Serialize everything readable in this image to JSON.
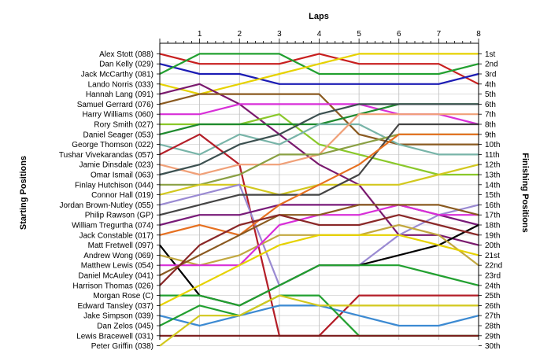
{
  "chart_data": {
    "type": "line",
    "title": "",
    "xlabel": "Laps",
    "ylabel_left": "Starting Positions",
    "ylabel_right": "Finishing Positions",
    "x": [
      0,
      1,
      2,
      3,
      4,
      5,
      6,
      7,
      8
    ],
    "x_tick_labels": [
      "1",
      "2",
      "3",
      "4",
      "5",
      "6",
      "7",
      "8"
    ],
    "y_inverted": true,
    "ylim": [
      1,
      30
    ],
    "grid": true,
    "finishing_labels": [
      "1st",
      "2nd",
      "3rd",
      "4th",
      "5th",
      "6th",
      "7th",
      "8th",
      "9th",
      "10th",
      "11th",
      "12th",
      "13th",
      "14th",
      "15th",
      "16th",
      "17th",
      "18th",
      "19th",
      "20th",
      "21st",
      "22nd",
      "23rd",
      "24th",
      "25th",
      "26th",
      "27th",
      "28th",
      "29th",
      "30th"
    ],
    "series": [
      {
        "name": "Alex Stott (088)",
        "color": "#c81e1e",
        "values": [
          1,
          2,
          2,
          2,
          1,
          2,
          2,
          2,
          4
        ]
      },
      {
        "name": "Dan Kelly (029)",
        "color": "#1c1cb4",
        "values": [
          2,
          3,
          3,
          4,
          4,
          4,
          4,
          4,
          3
        ]
      },
      {
        "name": "Jack McCarthy (081)",
        "color": "#22a030",
        "values": [
          3,
          1,
          1,
          1,
          3,
          3,
          3,
          3,
          2
        ]
      },
      {
        "name": "Lando Norris (033)",
        "color": "#e6d200",
        "values": [
          4,
          5,
          4,
          3,
          2,
          1,
          1,
          1,
          1
        ]
      },
      {
        "name": "Hannah Lang (091)",
        "color": "#7a1a6e",
        "values": [
          5,
          4,
          6,
          9,
          12,
          14,
          19,
          19,
          20
        ]
      },
      {
        "name": "Samuel Gerrard (076)",
        "color": "#8a5a20",
        "values": [
          6,
          5,
          5,
          5,
          5,
          9,
          10,
          10,
          10
        ]
      },
      {
        "name": "Harry Williams (060)",
        "color": "#d82fd8",
        "values": [
          7,
          7,
          6,
          6,
          6,
          6,
          7,
          7,
          8
        ]
      },
      {
        "name": "Rory Smith (027)",
        "color": "#8ac82a",
        "values": [
          8,
          8,
          8,
          7,
          10,
          11,
          12,
          13,
          13
        ]
      },
      {
        "name": "Daniel Seager (053)",
        "color": "#1e8a2e",
        "values": [
          9,
          8,
          8,
          8,
          8,
          7,
          6,
          6,
          6
        ]
      },
      {
        "name": "George Thomson (022)",
        "color": "#78b4a8",
        "values": [
          10,
          11,
          9,
          10,
          8,
          8,
          10,
          11,
          11
        ]
      },
      {
        "name": "Tushar Vivekarandas (057)",
        "color": "#b41e28",
        "values": [
          11,
          9,
          12,
          29,
          29,
          25,
          25,
          25,
          25
        ]
      },
      {
        "name": "Jamie Dinsdale (023)",
        "color": "#f0a078",
        "values": [
          12,
          13,
          12,
          12,
          11,
          7,
          7,
          7,
          7
        ]
      },
      {
        "name": "Omar Ismail (063)",
        "color": "#3c5050",
        "values": [
          13,
          12,
          10,
          9,
          7,
          6,
          6,
          6,
          6
        ]
      },
      {
        "name": "Finlay Hutchison (044)",
        "color": "#8aa044",
        "values": [
          14,
          14,
          13,
          11,
          11,
          10,
          9,
          9,
          9
        ]
      },
      {
        "name": "Connor Hall (019)",
        "color": "#d2c81e",
        "values": [
          15,
          14,
          14,
          15,
          14,
          14,
          14,
          13,
          12
        ]
      },
      {
        "name": "Jordan Brown-Nutley (055)",
        "color": "#9a8ad2",
        "values": [
          16,
          15,
          14,
          24,
          22,
          22,
          19,
          17,
          16
        ]
      },
      {
        "name": "Philip Rawson (GP)",
        "color": "#444444",
        "values": [
          17,
          16,
          15,
          15,
          15,
          13,
          8,
          8,
          8
        ]
      },
      {
        "name": "William Tregurtha (074)",
        "color": "#781a78",
        "values": [
          18,
          17,
          17,
          16,
          16,
          16,
          16,
          17,
          18
        ]
      },
      {
        "name": "Jack Constable (017)",
        "color": "#e67020",
        "values": [
          19,
          18,
          19,
          16,
          14,
          12,
          9,
          9,
          9
        ]
      },
      {
        "name": "Matt Fretwell (097)",
        "color": "#000000",
        "values": [
          20,
          25,
          26,
          24,
          22,
          22,
          21,
          20,
          18
        ]
      },
      {
        "name": "Andrew Wong (069)",
        "color": "#c2a840",
        "values": [
          21,
          22,
          21,
          19,
          19,
          19,
          18,
          19,
          22
        ]
      },
      {
        "name": "Matthew Lewis (054)",
        "color": "#d82fd8",
        "values": [
          22,
          22,
          22,
          18,
          17,
          17,
          16,
          17,
          17
        ]
      },
      {
        "name": "Daniel McAuley (041)",
        "color": "#8a5a20",
        "values": [
          23,
          21,
          19,
          17,
          17,
          16,
          16,
          16,
          17
        ]
      },
      {
        "name": "Harrison Thomas (026)",
        "color": "#8a2828",
        "values": [
          24,
          20,
          18,
          17,
          18,
          18,
          17,
          18,
          19
        ]
      },
      {
        "name": "Morgan Rose (C)",
        "color": "#22a030",
        "values": [
          25,
          25,
          26,
          24,
          22,
          22,
          22,
          23,
          24
        ]
      },
      {
        "name": "Edward Tansley (037)",
        "color": "#e6d200",
        "values": [
          26,
          24,
          22,
          20,
          19,
          19,
          19,
          20,
          21
        ]
      },
      {
        "name": "Jake Simpson (039)",
        "color": "#3c8ad2",
        "values": [
          27,
          28,
          27,
          26,
          26,
          27,
          28,
          28,
          27
        ]
      },
      {
        "name": "Dan Zelos (045)",
        "color": "#22a030",
        "values": [
          28,
          26,
          27,
          25,
          25,
          29,
          29,
          29,
          29
        ]
      },
      {
        "name": "Lewis Bracewell (031)",
        "color": "#7a1a1a",
        "values": [
          29,
          29,
          29,
          29,
          29,
          29,
          29,
          29,
          29
        ]
      },
      {
        "name": "Peter Griffin (038)",
        "color": "#d2c81e",
        "values": [
          30,
          27,
          27,
          25,
          26,
          26,
          26,
          26,
          26
        ]
      }
    ]
  }
}
